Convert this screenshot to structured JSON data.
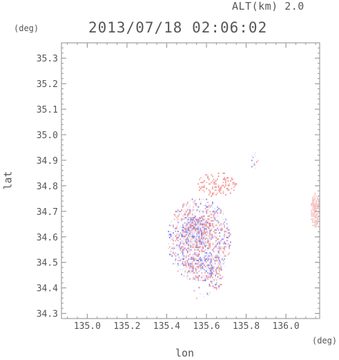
{
  "header": {
    "alt_label": "ALT(km) 2.0",
    "timestamp": "2013/07/18 02:06:02"
  },
  "chart_data": {
    "type": "heatmap",
    "title": "2013/07/18 02:06:02",
    "xlabel": "lon",
    "ylabel": "lat",
    "x_unit": "(deg)",
    "y_unit": "(deg)",
    "xlim": [
      134.87,
      136.17
    ],
    "ylim": [
      34.28,
      35.36
    ],
    "x_ticks": [
      135.0,
      135.2,
      135.4,
      135.6,
      135.8,
      136.0
    ],
    "x_tick_labels": [
      "135.0",
      "135.2",
      "135.4",
      "135.6",
      "135.8",
      "136.0"
    ],
    "y_ticks": [
      34.3,
      34.4,
      34.5,
      34.6,
      34.7,
      34.8,
      34.9,
      35.0,
      35.1,
      35.2,
      35.3
    ],
    "y_tick_labels": [
      "34.3",
      "34.4",
      "34.5",
      "34.6",
      "34.7",
      "34.8",
      "34.9",
      "35.0",
      "35.1",
      "35.2",
      "35.3"
    ],
    "grid": false,
    "colors": {
      "positive": "#f08a8a",
      "negative": "#7a7af0",
      "neutral": "#e4e4f6",
      "edge_echo": "#f5b8b8"
    },
    "echo_regions": [
      {
        "lon_range": [
          135.4,
          135.72
        ],
        "lat_range": [
          34.42,
          34.75
        ],
        "sign": "mixed",
        "density": 0.6
      },
      {
        "lon_range": [
          135.47,
          135.63
        ],
        "lat_range": [
          34.55,
          34.68
        ],
        "sign": "mixed",
        "density": 0.85
      },
      {
        "lon_range": [
          135.44,
          135.7
        ],
        "lat_range": [
          34.45,
          34.53
        ],
        "sign": "mixed",
        "density": 0.35
      },
      {
        "lon_range": [
          135.55,
          135.75
        ],
        "lat_range": [
          34.75,
          34.85
        ],
        "sign": "positive",
        "density": 0.3
      },
      {
        "lon_range": [
          135.6,
          135.68
        ],
        "lat_range": [
          34.38,
          34.48
        ],
        "sign": "mixed",
        "density": 0.35
      },
      {
        "lon_range": [
          135.5,
          135.62
        ],
        "lat_range": [
          34.35,
          34.4
        ],
        "sign": "mixed",
        "density": 0.15
      },
      {
        "lon_range": [
          135.82,
          135.86
        ],
        "lat_range": [
          34.86,
          34.93
        ],
        "sign": "mixed",
        "density": 0.3
      },
      {
        "lon_range": [
          136.12,
          136.17
        ],
        "lat_range": [
          34.63,
          34.77
        ],
        "sign": "positive",
        "density": 0.9
      }
    ]
  }
}
